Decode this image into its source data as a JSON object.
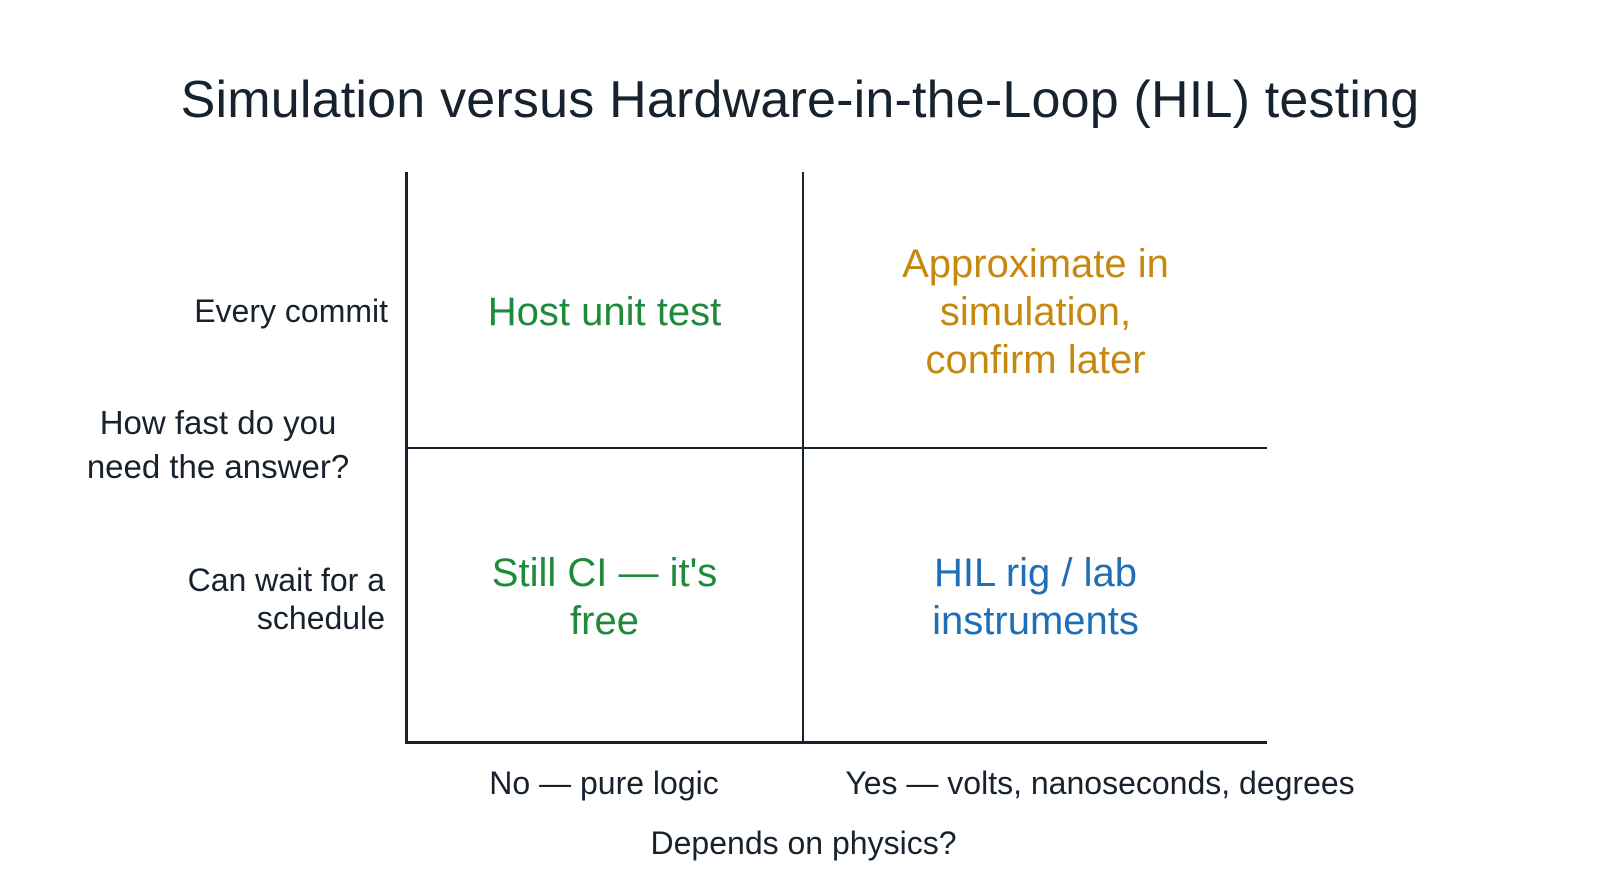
{
  "title": "Simulation versus Hardware-in-the-Loop (HIL) testing",
  "y_axis": {
    "title": "How fast do you need the answer?",
    "rows": [
      "Every commit",
      "Can wait for a schedule"
    ]
  },
  "x_axis": {
    "title": "Depends on physics?",
    "columns": [
      "No — pure logic",
      "Yes — volts, nanoseconds, degrees"
    ]
  },
  "quadrants": {
    "top_left": {
      "text": "Host unit test",
      "color": "#1e8a3a"
    },
    "top_right": {
      "text": "Approximate in simulation, confirm later",
      "color": "#c7880f"
    },
    "bottom_left": {
      "text": "Still CI — it's free",
      "color": "#1e8a3a"
    },
    "bottom_right": {
      "text": "HIL rig / lab instruments",
      "color": "#1f6fb8"
    }
  },
  "colors": {
    "ink": "#17222e",
    "background": "#ffffff"
  }
}
